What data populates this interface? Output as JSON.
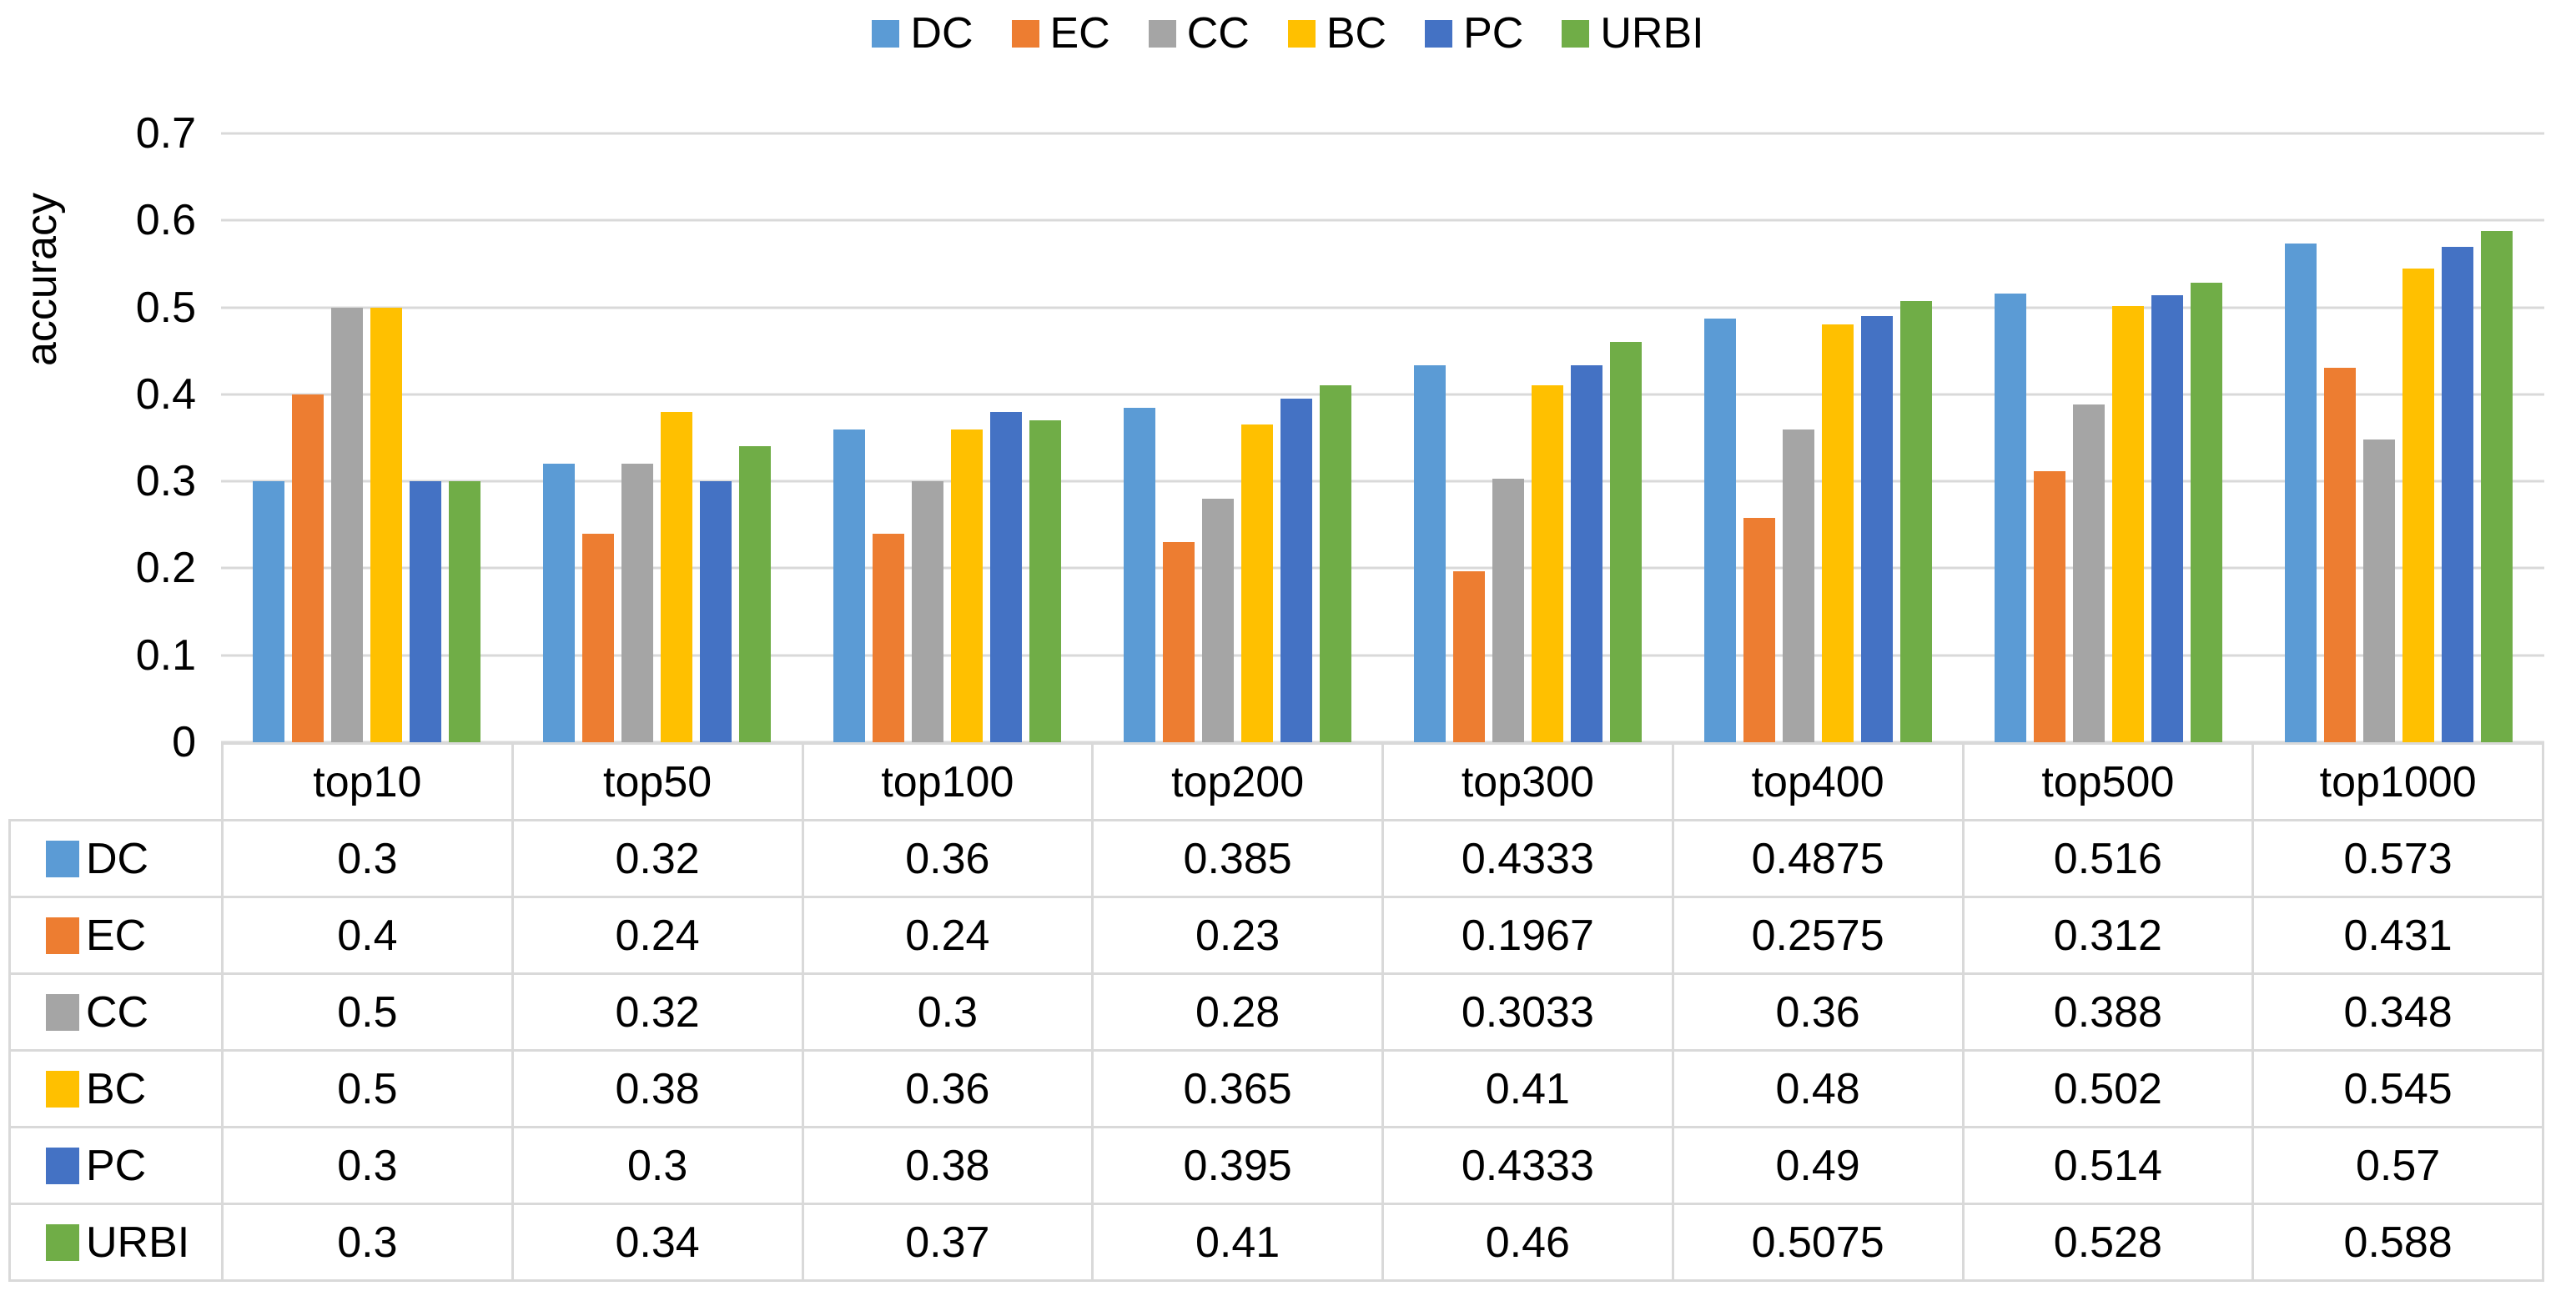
{
  "chart_data": {
    "type": "bar",
    "title": "",
    "xlabel": "",
    "ylabel": "accuracy",
    "ylim": [
      0,
      0.7
    ],
    "yticks": [
      0,
      0.1,
      0.2,
      0.3,
      0.4,
      0.5,
      0.6,
      0.7
    ],
    "grid": true,
    "legend_position": "top-center",
    "data_table_shown": true,
    "categories": [
      "top10",
      "top50",
      "top100",
      "top200",
      "top300",
      "top400",
      "top500",
      "top1000"
    ],
    "series": [
      {
        "name": "DC",
        "color": "#5B9BD5",
        "values": [
          0.3,
          0.32,
          0.36,
          0.385,
          0.4333,
          0.4875,
          0.516,
          0.573
        ]
      },
      {
        "name": "EC",
        "color": "#ED7D31",
        "values": [
          0.4,
          0.24,
          0.24,
          0.23,
          0.1967,
          0.2575,
          0.312,
          0.431
        ]
      },
      {
        "name": "CC",
        "color": "#A5A5A5",
        "values": [
          0.5,
          0.32,
          0.3,
          0.28,
          0.3033,
          0.36,
          0.388,
          0.348
        ]
      },
      {
        "name": "BC",
        "color": "#FFC000",
        "values": [
          0.5,
          0.38,
          0.36,
          0.365,
          0.41,
          0.48,
          0.502,
          0.545
        ]
      },
      {
        "name": "PC",
        "color": "#4472C4",
        "values": [
          0.3,
          0.3,
          0.38,
          0.395,
          0.4333,
          0.49,
          0.514,
          0.57
        ]
      },
      {
        "name": "URBI",
        "color": "#70AD47",
        "values": [
          0.3,
          0.34,
          0.37,
          0.41,
          0.46,
          0.5075,
          0.528,
          0.588
        ]
      }
    ],
    "colors": {
      "gridline": "#D9D9D9",
      "table_border": "#D9D9D9",
      "text": "#000000",
      "background": "#FFFFFF"
    }
  }
}
